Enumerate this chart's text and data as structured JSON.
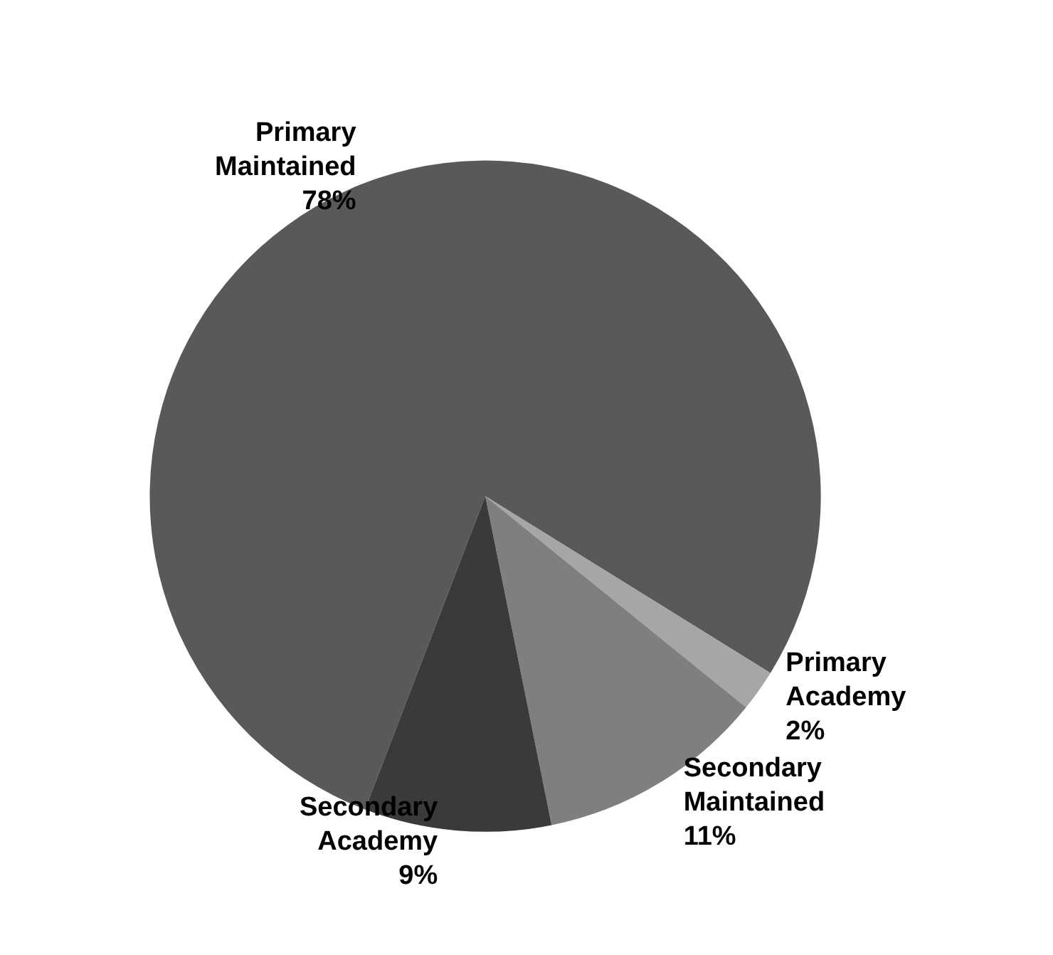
{
  "chart_data": {
    "type": "pie",
    "categories": [
      "Primary Maintained",
      "Primary Academy",
      "Secondary Maintained",
      "Secondary Academy"
    ],
    "values": [
      78,
      2,
      11,
      9
    ],
    "colors": [
      "#595959",
      "#a6a6a6",
      "#7f7f7f",
      "#3a3a3a"
    ],
    "value_labels": [
      "78%",
      "2%",
      "11%",
      "9%"
    ],
    "legend": false
  }
}
